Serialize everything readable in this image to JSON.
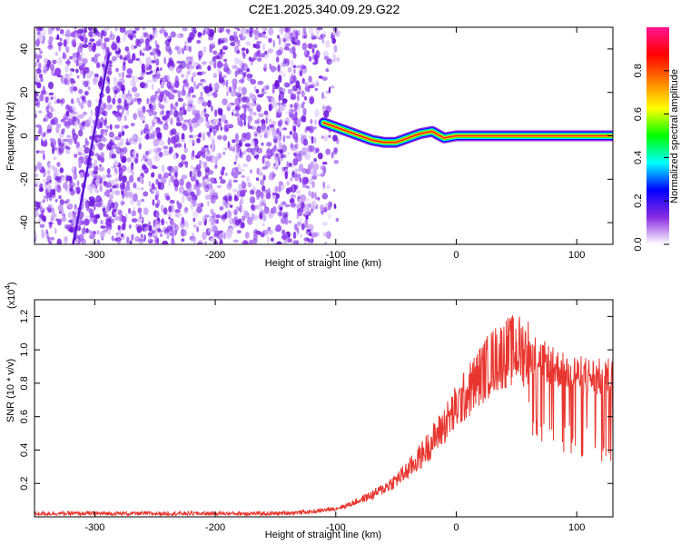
{
  "chart_data": [
    {
      "type": "heatmap",
      "title": "C2E1.2025.340.09.29.G22",
      "xlabel": "Height of straight line (km)",
      "ylabel": "Frequency (Hz)",
      "xlim": [
        -350,
        130
      ],
      "ylim": [
        -50,
        50
      ],
      "x_ticks": [
        -300,
        -200,
        -100,
        0,
        100
      ],
      "y_ticks": [
        -40,
        -20,
        0,
        20,
        40
      ],
      "x_tick_labels": [
        "-300",
        "-200",
        "-100",
        "0",
        "100"
      ],
      "y_tick_labels": [
        "-40",
        "-20",
        "0",
        "20",
        "40"
      ],
      "noise_region_km": [
        -350,
        -98
      ],
      "streak": {
        "x": [
          -318,
          -288
        ],
        "y": [
          -50,
          38
        ]
      },
      "signal_track": {
        "x": [
          -110,
          -100,
          -90,
          -80,
          -70,
          -60,
          -50,
          -40,
          -30,
          -20,
          -10,
          0,
          10,
          50,
          90,
          130
        ],
        "y": [
          6,
          4,
          2,
          0,
          -2,
          -3,
          -3,
          -1,
          1,
          2,
          -1,
          0,
          0,
          0,
          0,
          0
        ]
      },
      "colorbar": {
        "label": "Normalized spectral amplitude",
        "range": [
          0,
          1
        ],
        "ticks": [
          0.0,
          0.2,
          0.4,
          0.6,
          0.8
        ],
        "tick_labels": [
          "0.0",
          "0.2",
          "0.4",
          "0.6",
          "0.8"
        ],
        "colors": [
          "#ffffff",
          "#8a2be2",
          "#0000ff",
          "#00ffff",
          "#00ff00",
          "#ffff00",
          "#ff8000",
          "#ff0000",
          "#ff1493"
        ]
      }
    },
    {
      "type": "line",
      "xlabel": "Height of straight line (km)",
      "ylabel": "SNR (10 * v/v)",
      "y_multiplier": "(x10",
      "y_multiplier_exp": "4",
      "y_multiplier_close": ")",
      "xlim": [
        -350,
        130
      ],
      "ylim": [
        0,
        1.3
      ],
      "x_ticks": [
        -300,
        -200,
        -100,
        0,
        100
      ],
      "y_ticks": [
        0.2,
        0.4,
        0.6,
        0.8,
        1.0,
        1.2
      ],
      "x_tick_labels": [
        "-300",
        "-200",
        "-100",
        "0",
        "100"
      ],
      "y_tick_labels": [
        "0.2",
        "0.4",
        "0.6",
        "0.8",
        "1.0",
        "1.2"
      ],
      "color": "#e8352e",
      "series": [
        {
          "name": "SNR",
          "x": [
            -350,
            -300,
            -250,
            -200,
            -150,
            -120,
            -100,
            -90,
            -80,
            -70,
            -60,
            -50,
            -40,
            -30,
            -20,
            -10,
            0,
            10,
            20,
            30,
            40,
            50,
            60,
            70,
            80,
            90,
            100,
            110,
            120,
            130
          ],
          "y": [
            0.02,
            0.02,
            0.02,
            0.02,
            0.02,
            0.03,
            0.05,
            0.07,
            0.1,
            0.13,
            0.17,
            0.22,
            0.28,
            0.36,
            0.45,
            0.55,
            0.65,
            0.75,
            0.85,
            0.93,
            0.98,
            1.0,
            0.99,
            0.95,
            0.9,
            0.87,
            0.85,
            0.84,
            0.83,
            0.83
          ]
        }
      ]
    }
  ]
}
